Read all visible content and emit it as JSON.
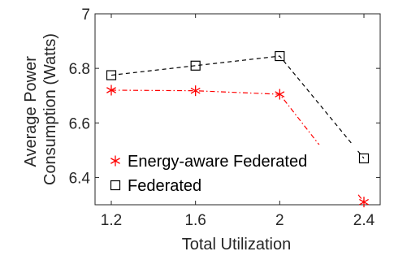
{
  "chart_data": {
    "type": "line",
    "title": "",
    "xlabel": "Total Utilization",
    "ylabel_lines": [
      "Average Power",
      "Consumption (Watts)"
    ],
    "x": [
      1.2,
      1.6,
      2,
      2.4
    ],
    "xticks": [
      "1.2",
      "1.6",
      "2",
      "2.4"
    ],
    "xlim": [
      1.2,
      2.4
    ],
    "yticks": [
      "6.4",
      "6.6",
      "6.8",
      "7"
    ],
    "ylim": [
      6.3,
      7.0
    ],
    "grid": false,
    "legend_position": "bottom-left",
    "series": [
      {
        "name": "Energy-aware Federated",
        "values": [
          6.72,
          6.718,
          6.705,
          6.31
        ],
        "color": "#ff0000",
        "marker": "asterisk",
        "line_style": "dash-dot"
      },
      {
        "name": "Federated",
        "values": [
          6.775,
          6.81,
          6.845,
          6.47
        ],
        "color": "#000000",
        "marker": "square",
        "line_style": "dashed"
      }
    ]
  }
}
